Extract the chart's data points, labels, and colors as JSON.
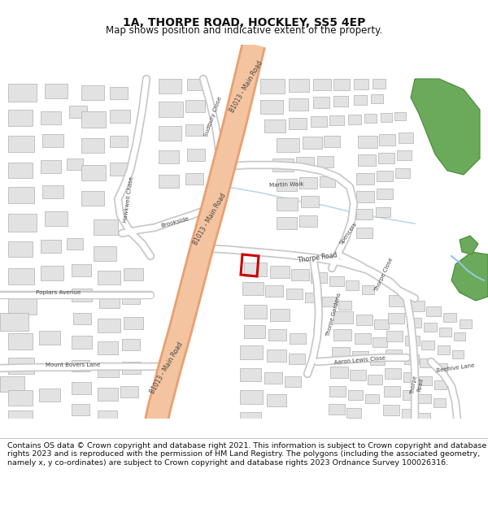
{
  "title": "1A, THORPE ROAD, HOCKLEY, SS5 4EP",
  "subtitle": "Map shows position and indicative extent of the property.",
  "footer": "Contains OS data © Crown copyright and database right 2021. This information is subject to Crown copyright and database rights 2023 and is reproduced with the permission of HM Land Registry. The polygons (including the associated geometry, namely x, y co-ordinates) are subject to Crown copyright and database rights 2023 Ordnance Survey 100026316.",
  "bg_color": "#ffffff",
  "map_bg": "#f7f7f7",
  "road_major_color": "#f4c4a0",
  "road_major_outline": "#e8a070",
  "road_minor_color": "#ffffff",
  "road_minor_outline": "#c8c8c8",
  "building_fill": "#e2e2e2",
  "building_edge": "#b0b0b0",
  "green_fill": "#6aaa5a",
  "green_edge": "#4a8a3a",
  "water_color": "#c0d8e8",
  "plot_edge": "#cc0000",
  "text_color": "#444444",
  "title_fontsize": 10,
  "subtitle_fontsize": 8.5,
  "footer_fontsize": 6.8,
  "label_fontsize": 5.5
}
